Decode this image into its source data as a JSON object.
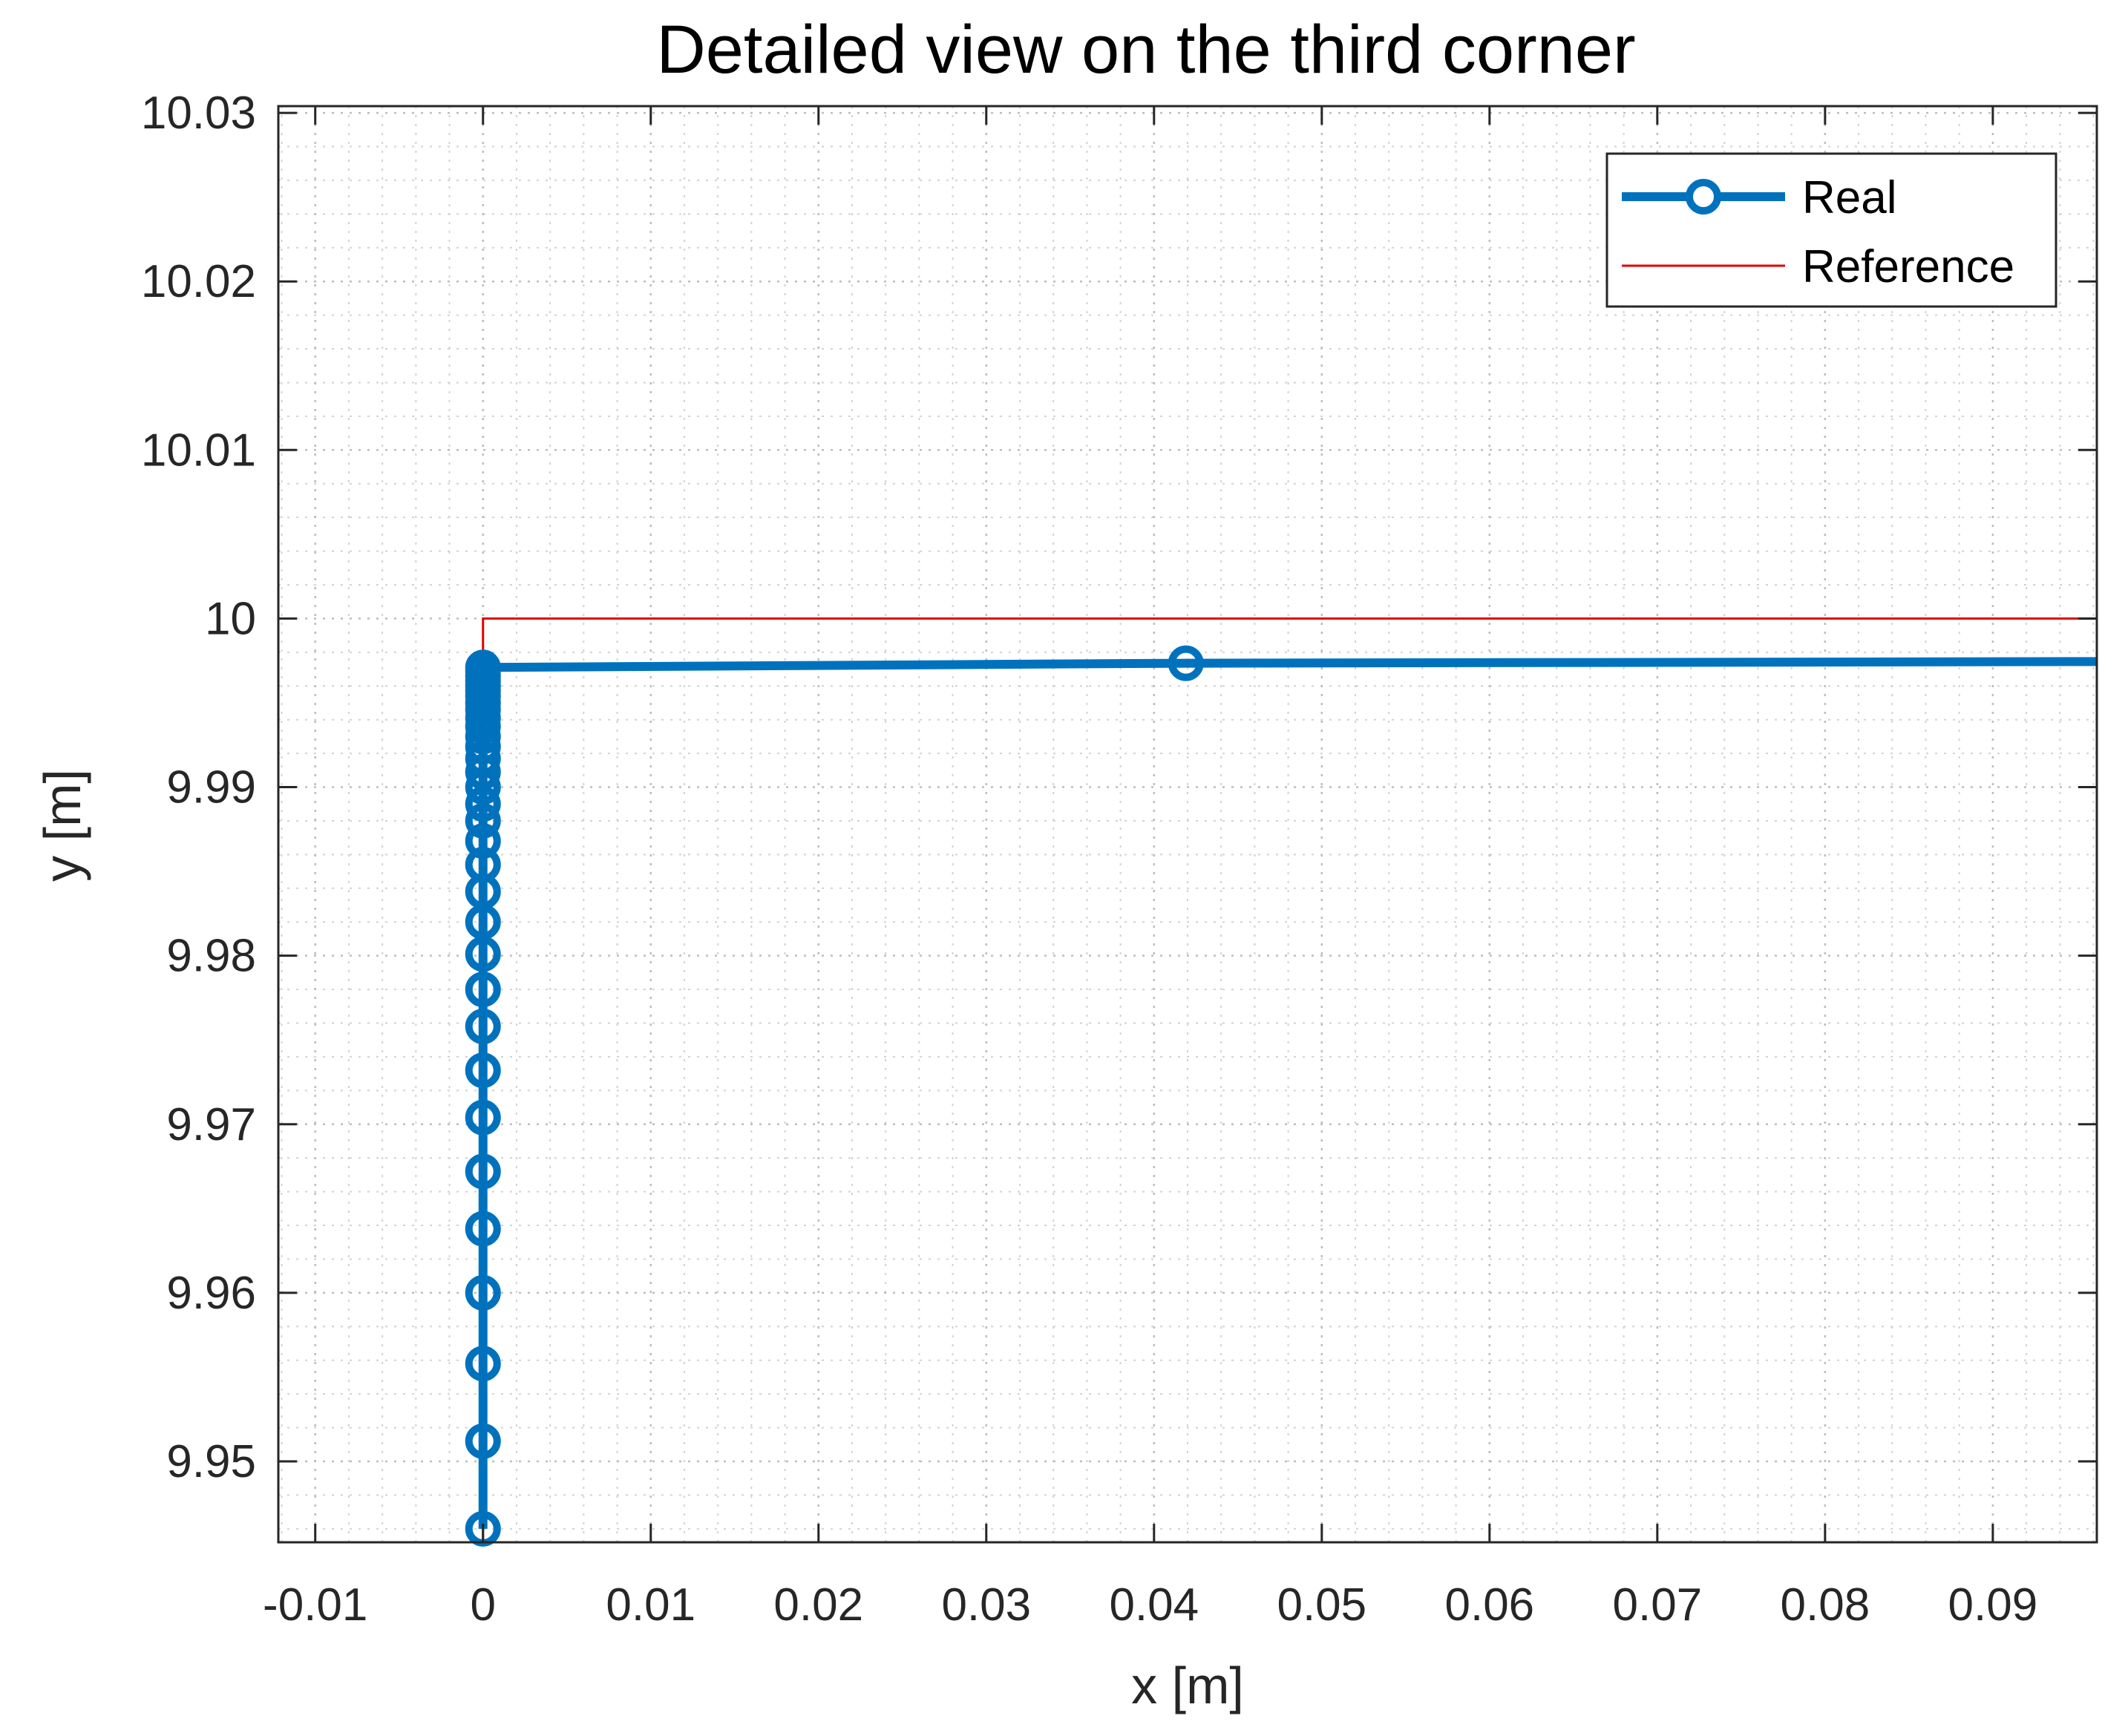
{
  "chart_data": {
    "type": "line",
    "title": "Detailed view on the third corner",
    "xlabel": "x [m]",
    "ylabel": "y [m]",
    "xlim": [
      -0.0122,
      0.0962
    ],
    "ylim": [
      9.9452,
      10.0304
    ],
    "xticks": [
      -0.01,
      0,
      0.01,
      0.02,
      0.03,
      0.04,
      0.05,
      0.06,
      0.07,
      0.08,
      0.09
    ],
    "xtick_labels": [
      "-0.01",
      "0",
      "0.01",
      "0.02",
      "0.03",
      "0.04",
      "0.05",
      "0.06",
      "0.07",
      "0.08",
      "0.09"
    ],
    "yticks": [
      9.95,
      9.96,
      9.97,
      9.98,
      9.99,
      10,
      10.01,
      10.02,
      10.03
    ],
    "ytick_labels": [
      "9.95",
      "9.96",
      "9.97",
      "9.98",
      "9.99",
      "10",
      "10.01",
      "10.02",
      "10.03"
    ],
    "grid": "on (major and minor, dotted)",
    "legend": {
      "position": "top-right",
      "entries": [
        "Real",
        "Reference"
      ]
    },
    "series": [
      {
        "name": "Real",
        "color": "#0072bd",
        "marker": "circle",
        "points": [
          [
            0,
            9.946
          ],
          [
            0,
            9.9512
          ],
          [
            0,
            9.9558
          ],
          [
            0,
            9.96
          ],
          [
            0,
            9.9638
          ],
          [
            0,
            9.9672
          ],
          [
            0,
            9.9704
          ],
          [
            0,
            9.9732
          ],
          [
            0,
            9.9758
          ],
          [
            0,
            9.978
          ],
          [
            0,
            9.9801
          ],
          [
            0,
            9.982
          ],
          [
            0,
            9.9838
          ],
          [
            0,
            9.9854
          ],
          [
            0,
            9.9868
          ],
          [
            0,
            9.988
          ],
          [
            0,
            9.989
          ],
          [
            0,
            9.99
          ],
          [
            0,
            9.9909
          ],
          [
            0,
            9.9917
          ],
          [
            0,
            9.9924
          ],
          [
            0,
            9.993
          ],
          [
            0,
            9.9936
          ],
          [
            0,
            9.9941
          ],
          [
            0,
            9.9946
          ],
          [
            0,
            9.995
          ],
          [
            0,
            9.9954
          ],
          [
            0,
            9.9957
          ],
          [
            0,
            9.996
          ],
          [
            0,
            9.9963
          ],
          [
            0,
            9.9966
          ],
          [
            0,
            9.9969
          ],
          [
            0,
            9.9971
          ],
          [
            0.0419,
            9.99735
          ],
          [
            0.0962,
            9.99745
          ]
        ]
      },
      {
        "name": "Reference",
        "color": "#e00000",
        "marker": "none",
        "points": [
          [
            0,
            9.9452
          ],
          [
            0,
            10
          ],
          [
            0.0962,
            10
          ]
        ]
      }
    ]
  }
}
